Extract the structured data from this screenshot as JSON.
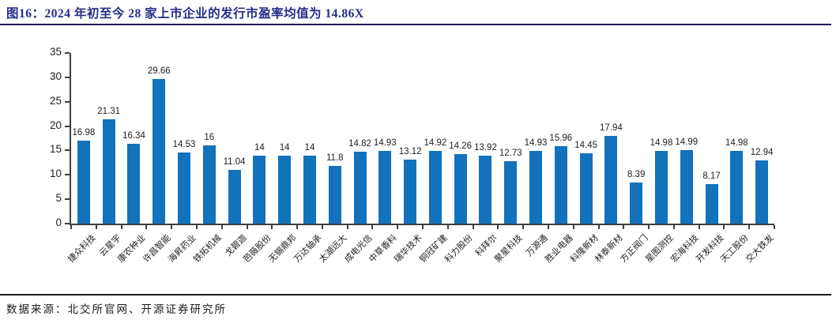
{
  "source": "数据来源：北交所官网、开源证券研究所",
  "colors": {
    "bar": "#1272BC",
    "title": "#232E8A",
    "rule_top": "#1B1B4E",
    "rule_bottom": "#1A1A1A",
    "axis": "#3F3F3F",
    "text": "#1F1F1F"
  },
  "chart_data": {
    "type": "bar",
    "title": "图16：2024 年初至今 28 家上市企业的发行市盈率均值为 14.86X",
    "categories": [
      "捷众科技",
      "云星宇",
      "康农种业",
      "许昌智能",
      "海昇药业",
      "铁拓机械",
      "戈碧迦",
      "芭薇股份",
      "无锡鼎邦",
      "万达轴承",
      "太湖远大",
      "成电光信",
      "中草香料",
      "瑞华技术",
      "铜冠矿建",
      "科力股份",
      "科拜尔",
      "聚星科技",
      "万源通",
      "胜业电器",
      "科隆新材",
      "林泰新材",
      "方正阀门",
      "星图测控",
      "宏海科技",
      "开发科技",
      "天工股份",
      "交大铁发"
    ],
    "values": [
      16.98,
      21.31,
      16.34,
      29.66,
      14.53,
      16,
      11.04,
      14,
      14,
      14,
      11.8,
      14.82,
      14.93,
      13.12,
      14.92,
      14.26,
      13.92,
      12.73,
      14.93,
      15.96,
      14.45,
      17.94,
      8.39,
      14.98,
      14.99,
      8.17,
      14.98,
      12.94
    ],
    "xlabel": "",
    "ylabel": "",
    "ylim": [
      0,
      35
    ],
    "yticks": [
      0,
      5,
      10,
      15,
      20,
      25,
      30,
      35
    ],
    "grid": false,
    "legend": null,
    "data_labels": true
  }
}
